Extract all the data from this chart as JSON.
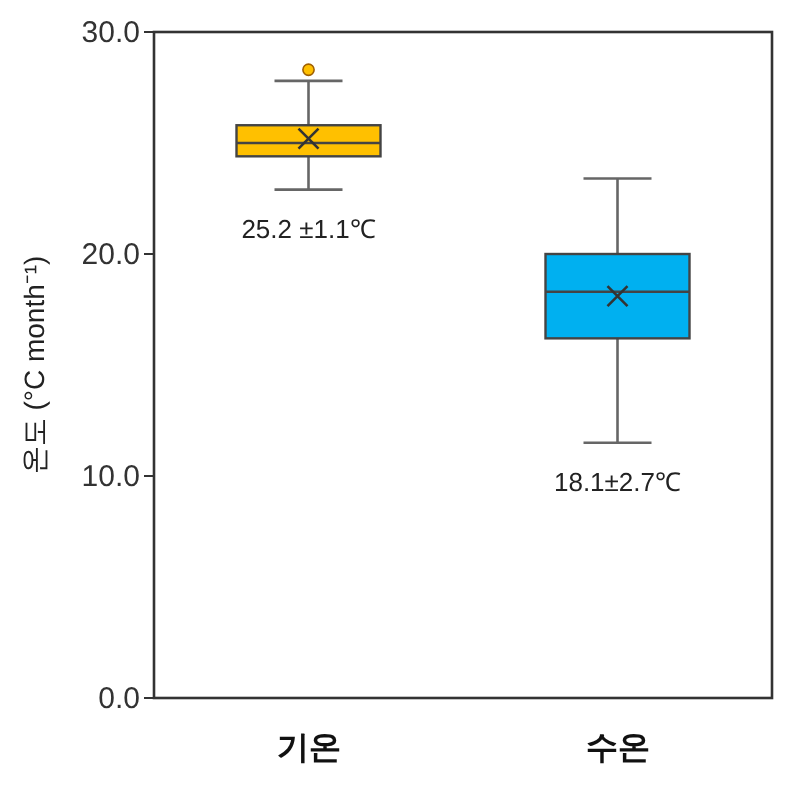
{
  "chart_data": {
    "type": "box",
    "ylabel": "온도 (°C month⁻¹)",
    "categories": [
      "기온",
      "수온"
    ],
    "series": [
      {
        "color": "#ffc000",
        "boxes": [
          {
            "low": 22.9,
            "q1": 24.4,
            "median": 25.0,
            "q3": 25.8,
            "high": 27.8,
            "mean": 25.2,
            "outliers": [
              28.3
            ]
          },
          null
        ]
      },
      {
        "color": "#00b0f0",
        "boxes": [
          null,
          {
            "low": 11.5,
            "q1": 16.2,
            "median": 18.3,
            "q3": 20.0,
            "high": 23.4,
            "mean": 18.1
          }
        ]
      }
    ],
    "annotations": [
      "25.2 ±1.1℃",
      "18.1±2.7℃"
    ],
    "ylim": [
      0,
      30
    ],
    "yticks": [
      {
        "value": 0,
        "label": "0.0"
      },
      {
        "value": 10,
        "label": "10.0"
      },
      {
        "value": 20,
        "label": "20.0"
      },
      {
        "value": 30,
        "label": "30.0"
      }
    ],
    "grid": false
  }
}
